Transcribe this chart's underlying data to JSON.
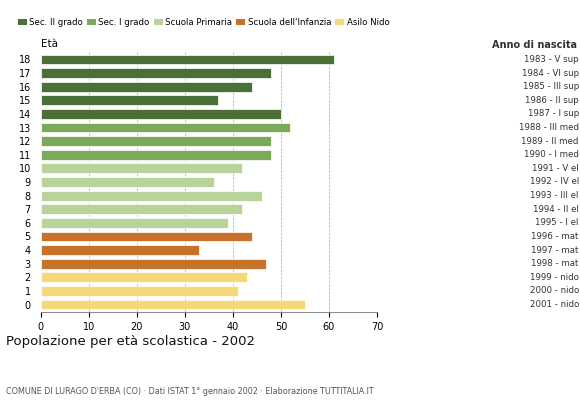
{
  "ages": [
    18,
    17,
    16,
    15,
    14,
    13,
    12,
    11,
    10,
    9,
    8,
    7,
    6,
    5,
    4,
    3,
    2,
    1,
    0
  ],
  "values": [
    61,
    48,
    44,
    37,
    50,
    52,
    48,
    48,
    42,
    36,
    46,
    42,
    39,
    44,
    33,
    47,
    43,
    41,
    55
  ],
  "anno_nascita": [
    "1983 - V sup",
    "1984 - VI sup",
    "1985 - III sup",
    "1986 - II sup",
    "1987 - I sup",
    "1988 - III med",
    "1989 - II med",
    "1990 - I med",
    "1991 - V el",
    "1992 - IV el",
    "1993 - III el",
    "1994 - II el",
    "1995 - I el",
    "1996 - mat",
    "1997 - mat",
    "1998 - mat",
    "1999 - nido",
    "2000 - nido",
    "2001 - nido"
  ],
  "colors": [
    "#4a7038",
    "#4a7038",
    "#4a7038",
    "#4a7038",
    "#4a7038",
    "#7aaa5a",
    "#7aaa5a",
    "#7aaa5a",
    "#b8d49a",
    "#b8d49a",
    "#b8d49a",
    "#b8d49a",
    "#b8d49a",
    "#c8712a",
    "#c8712a",
    "#c8712a",
    "#f5d87a",
    "#f5d87a",
    "#f5d87a"
  ],
  "legend_labels": [
    "Sec. II grado",
    "Sec. I grado",
    "Scuola Primaria",
    "Scuola dell'Infanzia",
    "Asilo Nido"
  ],
  "legend_colors": [
    "#4a7038",
    "#7aaa5a",
    "#b8d49a",
    "#c8712a",
    "#f5d87a"
  ],
  "title": "Popolazione per età scolastica - 2002",
  "subtitle": "COMUNE DI LURAGO D'ERBA (CO) · Dati ISTAT 1° gennaio 2002 · Elaborazione TUTTITALIA.IT",
  "ylabel": "Età",
  "xlabel2": "Anno di nascita",
  "xlim": [
    0,
    70
  ],
  "xticks": [
    0,
    10,
    20,
    30,
    40,
    50,
    60,
    70
  ],
  "background_color": "#ffffff",
  "grid_color": "#aaaaaa"
}
